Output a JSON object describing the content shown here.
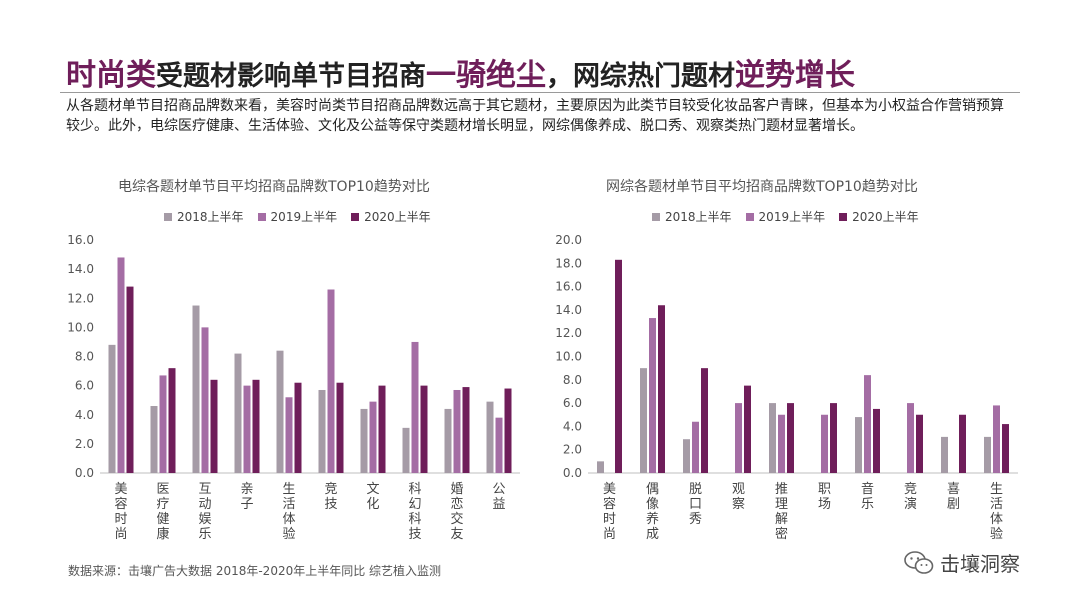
{
  "title": {
    "part1": "时尚类",
    "part2": "受题材影响单节目招商",
    "part3": "一骑绝尘",
    "part4": "，网综热门题材",
    "part5": "逆势增长"
  },
  "intro": "从各题材单节目招商品牌数来看，美容时尚类节目招商品牌数远高于其它题材，主要原因为此类节目较受化妆品客户青睐，但基本为小权益合作营销预算较少。此外，电综医疗健康、生活体验、文化及公益等保守类题材增长明显，网综偶像养成、脱口秀、观察类热门题材显著增长。",
  "source": "数据来源：击壤广告大数据 2018年-2020年上半年同比 综艺植入监测",
  "brand": "击壤洞察",
  "colors": {
    "y2018": "#a59ba6",
    "y2019": "#a46da4",
    "y2020": "#6f1e5a",
    "accent": "#6f1e5a"
  },
  "legend": [
    "2018上半年",
    "2019上半年",
    "2020上半年"
  ],
  "chart_data": [
    {
      "type": "bar",
      "title": "电综各题材单节目平均招商品牌数TOP10趋势对比",
      "categories": [
        "美容时尚",
        "医疗健康",
        "互动娱乐",
        "亲子",
        "生活体验",
        "竞技",
        "文化",
        "科幻科技",
        "婚恋交友",
        "公益"
      ],
      "series": [
        {
          "name": "2018上半年",
          "values": [
            8.8,
            4.6,
            11.5,
            8.2,
            8.4,
            5.7,
            4.4,
            3.1,
            4.4,
            4.9
          ]
        },
        {
          "name": "2019上半年",
          "values": [
            14.8,
            6.7,
            10.0,
            6.0,
            5.2,
            12.6,
            4.9,
            9.0,
            5.7,
            3.8
          ]
        },
        {
          "name": "2020上半年",
          "values": [
            12.8,
            7.2,
            6.4,
            6.4,
            6.2,
            6.2,
            6.0,
            6.0,
            5.9,
            5.8
          ]
        }
      ],
      "ylim": [
        0,
        16
      ],
      "yticks": [
        "0.0",
        "2.0",
        "4.0",
        "6.0",
        "8.0",
        "10.0",
        "12.0",
        "14.0",
        "16.0"
      ],
      "legend_position": "top"
    },
    {
      "type": "bar",
      "title": "网综各题材单节目平均招商品牌数TOP10趋势对比",
      "categories": [
        "美容时尚",
        "偶像养成",
        "脱口秀",
        "观察",
        "推理解密",
        "职场",
        "音乐",
        "竞演",
        "喜剧",
        "生活体验"
      ],
      "series": [
        {
          "name": "2018上半年",
          "values": [
            1.0,
            9.0,
            2.9,
            0,
            6.0,
            0,
            4.8,
            0,
            3.1,
            3.1
          ]
        },
        {
          "name": "2019上半年",
          "values": [
            0,
            13.3,
            4.4,
            6.0,
            5.0,
            5.0,
            8.4,
            6.0,
            0,
            5.8
          ]
        },
        {
          "name": "2020上半年",
          "values": [
            18.3,
            14.4,
            9.0,
            7.5,
            6.0,
            6.0,
            5.5,
            5.0,
            5.0,
            4.2
          ]
        }
      ],
      "ylim": [
        0,
        20
      ],
      "yticks": [
        "0.0",
        "2.0",
        "4.0",
        "6.0",
        "8.0",
        "10.0",
        "12.0",
        "14.0",
        "16.0",
        "18.0",
        "20.0"
      ],
      "legend_position": "top"
    }
  ]
}
